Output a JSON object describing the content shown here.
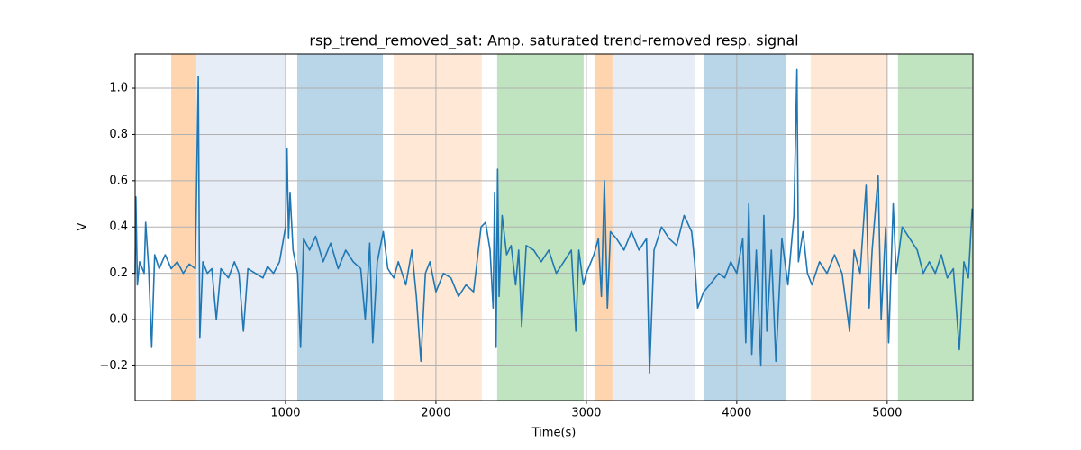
{
  "chart_data": {
    "type": "line",
    "title": "rsp_trend_removed_sat: Amp. saturated trend-removed resp. signal",
    "x_label": "Time(s)",
    "y_label": "V",
    "xlim": [
      0,
      5570
    ],
    "ylim": [
      -0.35,
      1.148
    ],
    "xticks": [
      1000,
      2000,
      3000,
      4000,
      5000
    ],
    "yticks": [
      {
        "value": -0.2,
        "label": "−0.2"
      },
      {
        "value": 0,
        "label": "0.0"
      },
      0.2,
      0.4,
      0.6,
      0.8,
      {
        "value": 1,
        "label": "1.0"
      }
    ],
    "grid": true,
    "spans": [
      {
        "start": 240,
        "end": 407,
        "color": "#ffd5b0"
      },
      {
        "start": 407,
        "end": 1000,
        "color": "#e6edf7"
      },
      {
        "start": 1078,
        "end": 1647,
        "color": "#b9d5e8"
      },
      {
        "start": 1719,
        "end": 2305,
        "color": "#ffe9d6"
      },
      {
        "start": 2407,
        "end": 2982,
        "color": "#bfe4bf"
      },
      {
        "start": 3054,
        "end": 3174,
        "color": "#ffd5b0"
      },
      {
        "start": 3174,
        "end": 3719,
        "color": "#e6edf7"
      },
      {
        "start": 3784,
        "end": 4329,
        "color": "#b9d5e8"
      },
      {
        "start": 4491,
        "end": 5000,
        "color": "#ffe9d6"
      },
      {
        "start": 5072,
        "end": 5569,
        "color": "#bfe4bf"
      }
    ],
    "color": "#1f77b4",
    "x": [
      0,
      5,
      15,
      30,
      60,
      70,
      90,
      110,
      130,
      160,
      200,
      240,
      280,
      320,
      360,
      400,
      420,
      430,
      450,
      480,
      510,
      540,
      570,
      620,
      660,
      690,
      720,
      750,
      800,
      850,
      880,
      920,
      960,
      1000,
      1010,
      1020,
      1030,
      1050,
      1080,
      1100,
      1120,
      1160,
      1200,
      1250,
      1300,
      1350,
      1400,
      1450,
      1500,
      1530,
      1560,
      1580,
      1610,
      1650,
      1680,
      1720,
      1750,
      1800,
      1840,
      1870,
      1900,
      1930,
      1960,
      2000,
      2050,
      2100,
      2150,
      2200,
      2250,
      2300,
      2330,
      2360,
      2380,
      2390,
      2400,
      2410,
      2420,
      2440,
      2470,
      2500,
      2530,
      2550,
      2570,
      2600,
      2650,
      2700,
      2750,
      2800,
      2850,
      2900,
      2930,
      2950,
      2980,
      3000,
      3050,
      3080,
      3100,
      3120,
      3140,
      3160,
      3200,
      3250,
      3300,
      3350,
      3400,
      3420,
      3450,
      3500,
      3550,
      3600,
      3650,
      3700,
      3720,
      3740,
      3780,
      3820,
      3880,
      3920,
      3960,
      4000,
      4040,
      4060,
      4080,
      4100,
      4130,
      4160,
      4180,
      4200,
      4230,
      4260,
      4300,
      4340,
      4380,
      4400,
      4410,
      4440,
      4470,
      4500,
      4550,
      4600,
      4650,
      4700,
      4750,
      4780,
      4820,
      4860,
      4880,
      4900,
      4940,
      4960,
      4990,
      5010,
      5040,
      5060,
      5100,
      5150,
      5200,
      5240,
      5280,
      5320,
      5360,
      5400,
      5440,
      5480,
      5510,
      5540,
      5565
    ],
    "values": [
      0.2,
      0.53,
      0.15,
      0.25,
      0.2,
      0.42,
      0.22,
      -0.12,
      0.28,
      0.22,
      0.28,
      0.22,
      0.25,
      0.2,
      0.24,
      0.22,
      1.05,
      -0.08,
      0.25,
      0.2,
      0.22,
      0.0,
      0.22,
      0.18,
      0.25,
      0.2,
      -0.05,
      0.22,
      0.2,
      0.18,
      0.23,
      0.2,
      0.25,
      0.4,
      0.74,
      0.35,
      0.55,
      0.3,
      0.2,
      -0.12,
      0.35,
      0.3,
      0.36,
      0.25,
      0.33,
      0.22,
      0.3,
      0.25,
      0.22,
      0.0,
      0.33,
      -0.1,
      0.25,
      0.38,
      0.22,
      0.18,
      0.25,
      0.15,
      0.3,
      0.1,
      -0.18,
      0.2,
      0.25,
      0.12,
      0.2,
      0.18,
      0.1,
      0.15,
      0.12,
      0.4,
      0.42,
      0.3,
      0.05,
      0.55,
      -0.12,
      0.65,
      0.1,
      0.45,
      0.28,
      0.32,
      0.15,
      0.3,
      -0.03,
      0.32,
      0.3,
      0.25,
      0.3,
      0.2,
      0.25,
      0.3,
      -0.05,
      0.3,
      0.15,
      0.2,
      0.28,
      0.35,
      0.1,
      0.6,
      0.05,
      0.38,
      0.35,
      0.3,
      0.38,
      0.3,
      0.35,
      -0.23,
      0.3,
      0.4,
      0.35,
      0.32,
      0.45,
      0.38,
      0.25,
      0.05,
      0.12,
      0.15,
      0.2,
      0.18,
      0.25,
      0.2,
      0.35,
      -0.1,
      0.5,
      -0.15,
      0.3,
      -0.2,
      0.45,
      -0.05,
      0.3,
      -0.18,
      0.35,
      0.15,
      0.45,
      1.08,
      0.25,
      0.38,
      0.2,
      0.15,
      0.25,
      0.2,
      0.28,
      0.2,
      -0.05,
      0.3,
      0.2,
      0.58,
      0.05,
      0.3,
      0.62,
      0.0,
      0.4,
      -0.1,
      0.5,
      0.2,
      0.4,
      0.35,
      0.3,
      0.2,
      0.25,
      0.2,
      0.28,
      0.18,
      0.22,
      -0.13,
      0.25,
      0.18,
      0.48
    ]
  }
}
